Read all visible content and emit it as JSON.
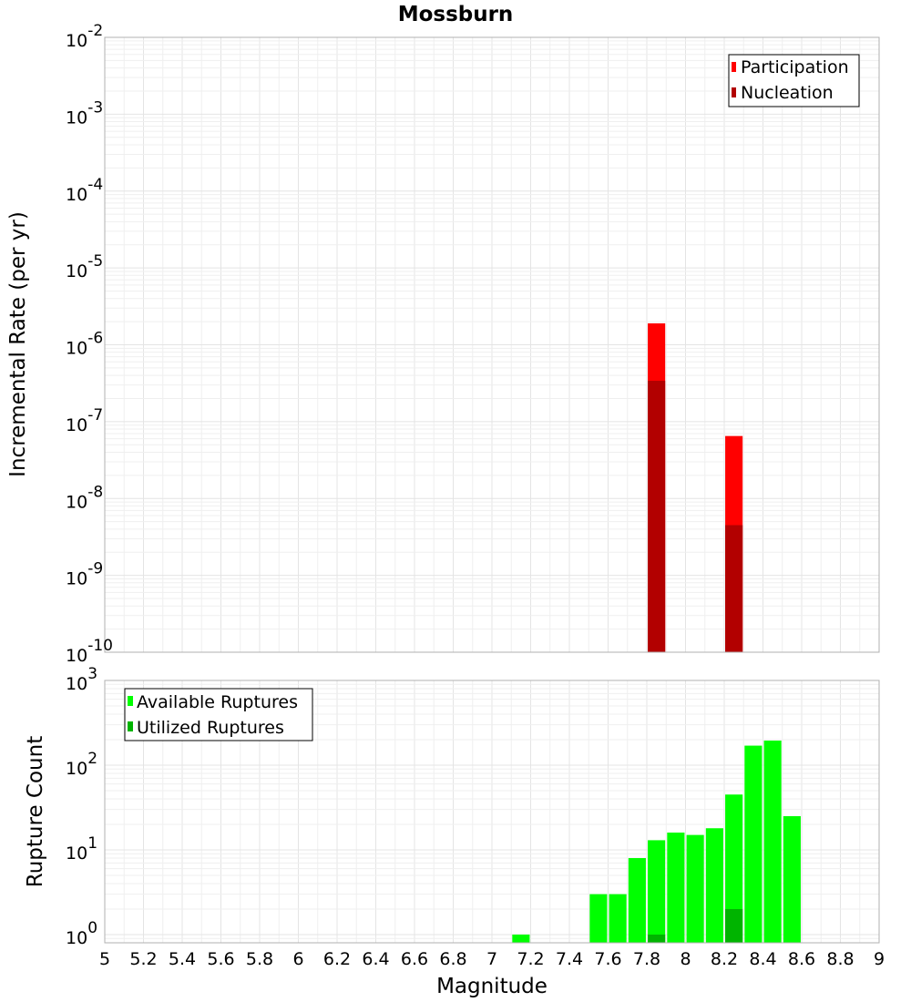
{
  "chart_data": [
    {
      "type": "bar",
      "title": "Mossburn",
      "xlabel": "",
      "ylabel": "Incremental Rate (per yr)",
      "yscale": "log",
      "ylim": [
        1e-10,
        0.01
      ],
      "xlim": [
        5,
        9
      ],
      "y_tick_labels": [
        {
          "base": "10",
          "exp": "-10"
        },
        {
          "base": "10",
          "exp": "-9"
        },
        {
          "base": "10",
          "exp": "-8"
        },
        {
          "base": "10",
          "exp": "-7"
        },
        {
          "base": "10",
          "exp": "-6"
        },
        {
          "base": "10",
          "exp": "-5"
        },
        {
          "base": "10",
          "exp": "-4"
        },
        {
          "base": "10",
          "exp": "-3"
        },
        {
          "base": "10",
          "exp": "-2"
        }
      ],
      "grid": true,
      "legend_position": "top-right",
      "bar_width": 0.09,
      "series": [
        {
          "name": "Participation",
          "color": "#ff0000",
          "x": [
            7.85,
            8.25
          ],
          "values": [
            1.9e-06,
            6.5e-08
          ]
        },
        {
          "name": "Nucleation",
          "color": "#b20000",
          "x": [
            7.85,
            8.25
          ],
          "values": [
            3.4e-07,
            4.5e-09
          ]
        }
      ]
    },
    {
      "type": "bar",
      "title": "",
      "xlabel": "Magnitude",
      "ylabel": "Rupture Count",
      "yscale": "log",
      "ylim": [
        0.8,
        1000
      ],
      "xlim": [
        5,
        9
      ],
      "x_tick_labels": [
        "5",
        "5.2",
        "5.4",
        "5.6",
        "5.8",
        "6",
        "6.2",
        "6.4",
        "6.6",
        "6.8",
        "7",
        "7.2",
        "7.4",
        "7.6",
        "7.8",
        "8",
        "8.2",
        "8.4",
        "8.6",
        "8.8",
        "9"
      ],
      "y_tick_labels": [
        {
          "base": "10",
          "exp": "0"
        },
        {
          "base": "10",
          "exp": "1"
        },
        {
          "base": "10",
          "exp": "2"
        },
        {
          "base": "10",
          "exp": "3"
        }
      ],
      "grid": true,
      "legend_position": "top-left",
      "bar_width": 0.09,
      "series": [
        {
          "name": "Available Ruptures",
          "color": "#00ff00",
          "x": [
            7.15,
            7.55,
            7.65,
            7.75,
            7.85,
            7.95,
            8.05,
            8.15,
            8.25,
            8.35,
            8.45,
            8.55
          ],
          "values": [
            1,
            3,
            3,
            8,
            13,
            16,
            15,
            18,
            45,
            170,
            195,
            25
          ]
        },
        {
          "name": "Utilized Ruptures",
          "color": "#00b400",
          "x": [
            7.85,
            8.25
          ],
          "values": [
            1,
            2
          ]
        }
      ]
    }
  ]
}
